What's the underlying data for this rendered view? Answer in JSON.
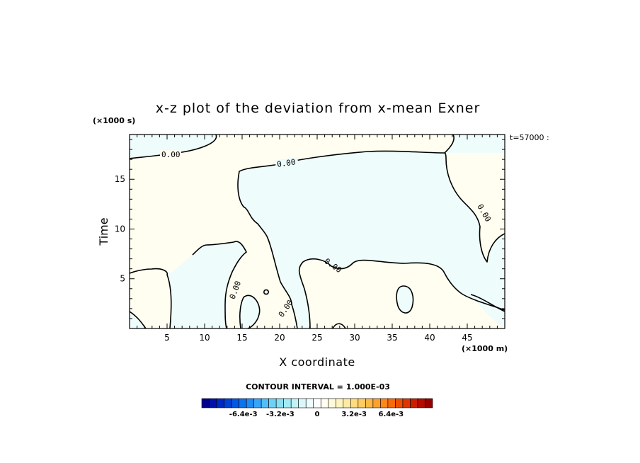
{
  "chart_data": {
    "type": "heatmap",
    "title": "x-z plot of the deviation from x-mean Exner",
    "xlabel": "X coordinate",
    "ylabel": "Time",
    "x_unit": "(×1000 m)",
    "y_unit": "(×1000 s)",
    "time_label": "t=57000 :",
    "xlim": [
      0,
      50
    ],
    "ylim": [
      0,
      19.5
    ],
    "x_ticks": [
      "5",
      "10",
      "15",
      "20",
      "25",
      "30",
      "35",
      "40",
      "45"
    ],
    "x_tick_values": [
      5,
      10,
      15,
      20,
      25,
      30,
      35,
      40,
      45
    ],
    "y_ticks": [
      "5",
      "10",
      "15"
    ],
    "y_tick_values": [
      5,
      10,
      15
    ],
    "contour_interval_label": "CONTOUR INTERVAL = 1.000E-03",
    "contour_labels": [
      "0.00",
      "0.00",
      "0.00",
      "0.00",
      "0.00",
      "0.00"
    ],
    "colorbar": {
      "tick_labels": [
        "-6.4e-3",
        "-3.2e-3",
        "0",
        "3.2e-3",
        "6.4e-3"
      ],
      "tick_values": [
        -0.0064,
        -0.0032,
        0,
        0.0032,
        0.0064
      ],
      "range": [
        -0.01,
        0.01
      ],
      "colors": [
        "#00008c",
        "#0010a8",
        "#0028c0",
        "#0040d4",
        "#0058e4",
        "#0c72ee",
        "#208cf4",
        "#38a6f8",
        "#52bef8",
        "#6cd2f6",
        "#88e0f4",
        "#a4eaf4",
        "#c0f2f6",
        "#daf8fa",
        "#eefcfc",
        "#ffffff",
        "#fffef0",
        "#fffadc",
        "#fff4c0",
        "#ffeaa0",
        "#ffdc80",
        "#ffcc60",
        "#ffb844",
        "#ffa02c",
        "#ff8618",
        "#f86a08",
        "#ec4e00",
        "#de3400",
        "#cc1c00",
        "#b40a00",
        "#960000"
      ]
    },
    "field_colors": {
      "negative": "#eefcfc",
      "positive": "#fffef0",
      "contour": "#000000"
    }
  }
}
